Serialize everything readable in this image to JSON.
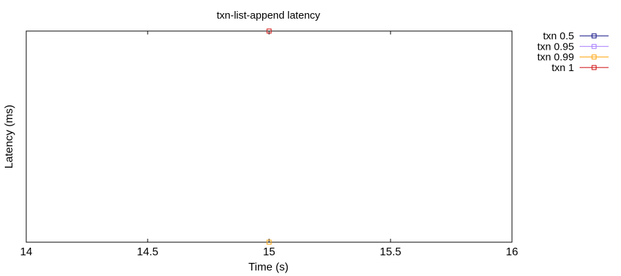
{
  "chart_data": {
    "type": "scatter",
    "title": "txn-list-append latency",
    "xlabel": "Time (s)",
    "ylabel": "Latency (ms)",
    "xlim": [
      14,
      16
    ],
    "ylim": [
      0,
      1
    ],
    "xticks": [
      "14",
      "14.5",
      "15",
      "15.5",
      "16"
    ],
    "xtick_values": [
      14,
      14.5,
      15,
      15.5,
      16
    ],
    "legend_position": "outside-top-right",
    "series": [
      {
        "name": "txn 0.5",
        "color": "#00007f",
        "x": [
          15
        ],
        "y": [
          0
        ]
      },
      {
        "name": "txn 0.95",
        "color": "#a276ff",
        "x": [
          15
        ],
        "y": [
          0
        ]
      },
      {
        "name": "txn 0.99",
        "color": "#ffa000",
        "x": [
          15
        ],
        "y": [
          0
        ]
      },
      {
        "name": "txn 1",
        "color": "#cc0000",
        "x": [
          15
        ],
        "y": [
          1
        ]
      }
    ]
  }
}
